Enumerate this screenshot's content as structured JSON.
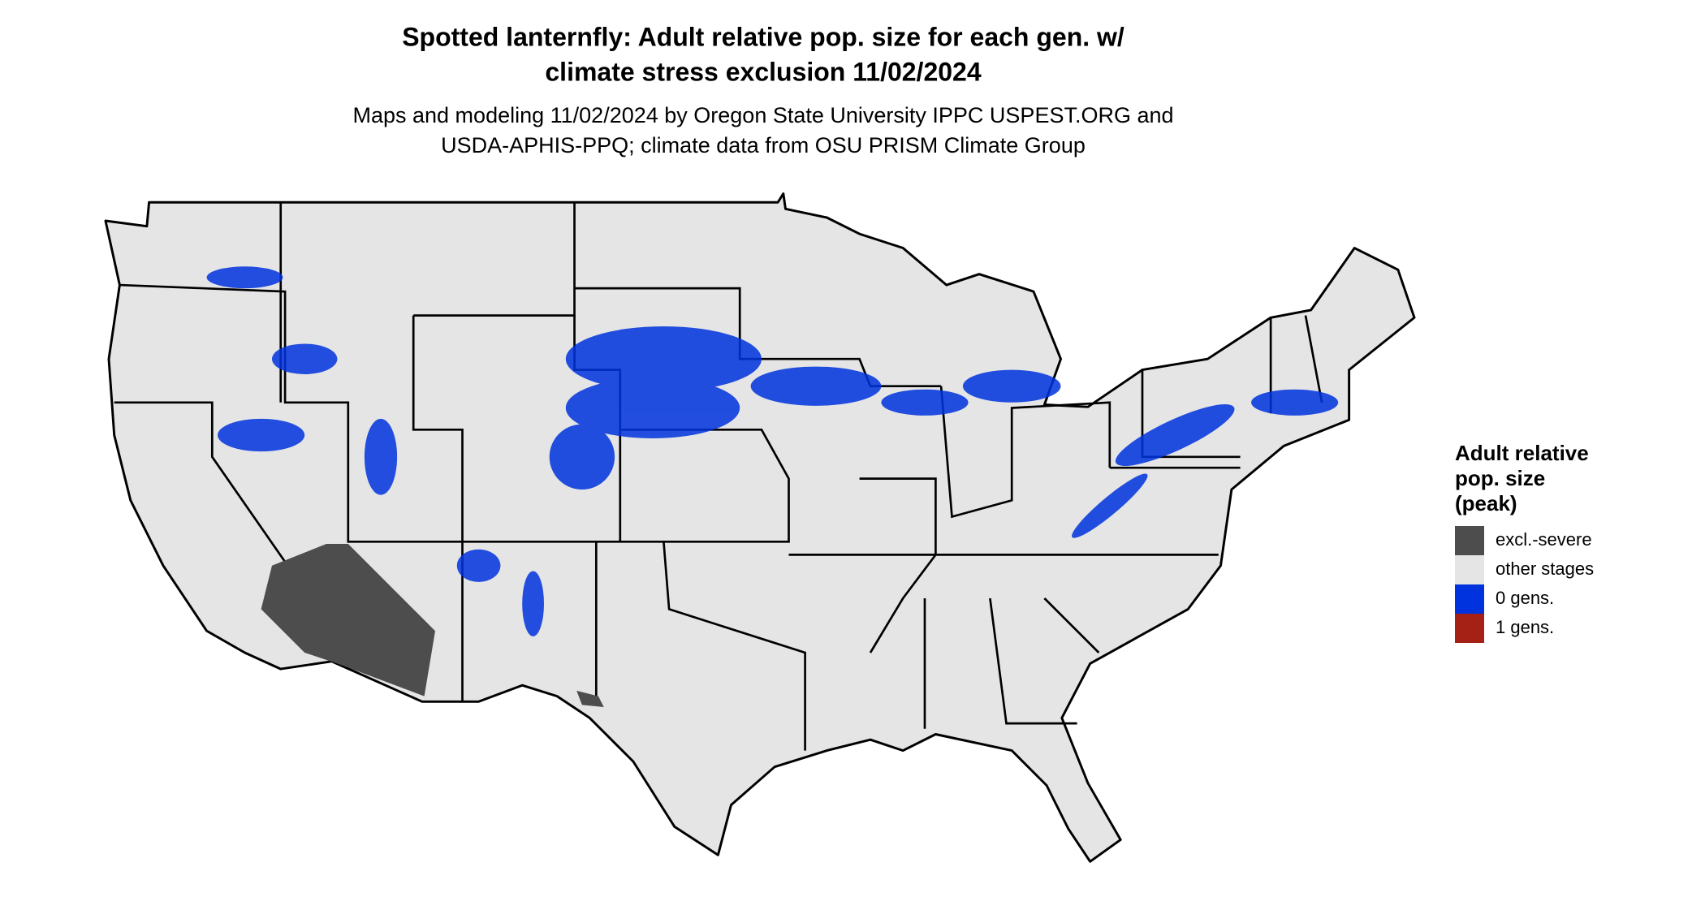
{
  "header": {
    "title_lines": [
      "Spotted lanternfly: Adult relative pop. size for each gen. w/",
      "climate stress exclusion 11/02/2024"
    ],
    "subtitle_lines": [
      "Maps and modeling 11/02/2024 by Oregon State University IPPC USPEST.ORG and",
      "USDA-APHIS-PPQ; climate data from OSU PRISM Climate Group"
    ]
  },
  "legend": {
    "title_lines": [
      "Adult relative",
      "pop. size",
      "(peak)"
    ],
    "items": [
      {
        "label": "excl.-severe",
        "color": "#4d4d4d"
      },
      {
        "label": "other stages",
        "color": "#e5e5e5"
      },
      {
        "label": "0 gens.",
        "color": "#0033dd"
      },
      {
        "label": "1 gens.",
        "color": "#a52015"
      }
    ]
  }
}
